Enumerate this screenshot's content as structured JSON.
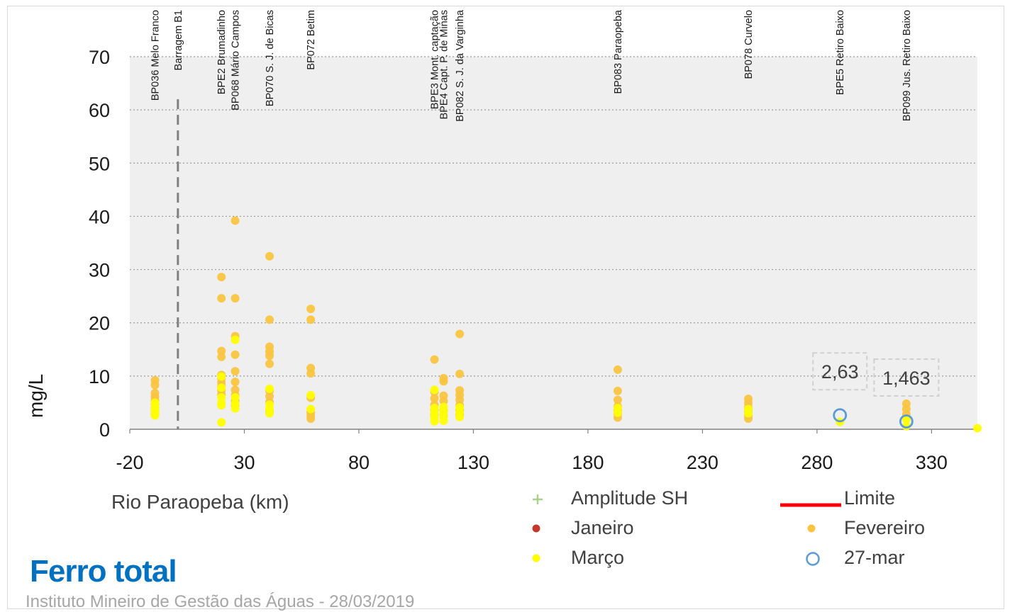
{
  "title": "Ferro total",
  "subtitle": "Instituto Mineiro de Gestão das Águas - 28/03/2019",
  "colors": {
    "janeiro": "#c0392b",
    "fevereiro": "#f9c440",
    "marco": "#ffff00",
    "marco27": "#5b9bd5",
    "limite": "#ff0000",
    "amplitude": "#a9d18e",
    "plot_bg": "#efefef",
    "dam_line": "#808080"
  },
  "legend": [
    {
      "key": "amplitude",
      "label": "Amplitude SH",
      "symbol": "plus-icon"
    },
    {
      "key": "limite",
      "label": "Limite",
      "symbol": "line-icon"
    },
    {
      "key": "janeiro",
      "label": "Janeiro",
      "symbol": "dot-icon"
    },
    {
      "key": "fevereiro",
      "label": "Fevereiro",
      "symbol": "dot-icon"
    },
    {
      "key": "marco",
      "label": "Março",
      "symbol": "dot-icon"
    },
    {
      "key": "marco27",
      "label": "27-mar",
      "symbol": "ring-icon"
    }
  ],
  "chart_data": {
    "type": "scatter",
    "xlabel": "Rio Paraopeba (km)",
    "ylabel": "mg/L",
    "xlim": [
      -20,
      350
    ],
    "ylim": [
      0,
      70
    ],
    "xticks": [
      "-20",
      "30",
      "80",
      "130",
      "180",
      "230",
      "280",
      "330"
    ],
    "yticks": [
      "0",
      "10",
      "20",
      "30",
      "40",
      "50",
      "60",
      "70"
    ],
    "grid": "horizontal-dotted",
    "stations": [
      {
        "label": "BP036 Melo Franco",
        "x": -9
      },
      {
        "label": "Barragem B1",
        "x": 1
      },
      {
        "label": "BPE2 Brumadinho",
        "x": 20
      },
      {
        "label": "BP068 Mário Campos",
        "x": 26
      },
      {
        "label": "BP070 S. J. de Bicas",
        "x": 41
      },
      {
        "label": "BP072 Betim",
        "x": 59
      },
      {
        "label": "BPE3 Mont. captação",
        "x": 113
      },
      {
        "label": "BPE4 Capt. P. de Minas",
        "x": 117
      },
      {
        "label": "BP082 S. J. da Varginha",
        "x": 124
      },
      {
        "label": "BP083 Paraopeba",
        "x": 193
      },
      {
        "label": "BP078 Curvelo",
        "x": 250
      },
      {
        "label": "BPE5 Retiro Baixo",
        "x": 290
      },
      {
        "label": "BP099 Jus. Retiro Baixo",
        "x": 319
      }
    ],
    "dam_x": 1,
    "series": [
      {
        "name": "Fevereiro",
        "key": "fevereiro",
        "points": [
          [
            -9,
            9.2
          ],
          [
            -9,
            8.3
          ],
          [
            -9,
            6.8
          ],
          [
            -9,
            6.1
          ],
          [
            -9,
            5.4
          ],
          [
            -9,
            4.7
          ],
          [
            -9,
            4.1
          ],
          [
            -9,
            3.5
          ],
          [
            -9,
            2.9
          ],
          [
            20,
            28.6
          ],
          [
            20,
            24.6
          ],
          [
            20,
            14.7
          ],
          [
            20,
            13.6
          ],
          [
            20,
            10.2
          ],
          [
            20,
            9.6
          ],
          [
            20,
            8.8
          ],
          [
            20,
            8.1
          ],
          [
            20,
            7.3
          ],
          [
            20,
            6.5
          ],
          [
            26,
            39.2
          ],
          [
            26,
            24.6
          ],
          [
            26,
            17.5
          ],
          [
            26,
            14.0
          ],
          [
            26,
            10.9
          ],
          [
            26,
            8.9
          ],
          [
            26,
            7.4
          ],
          [
            26,
            6.4
          ],
          [
            26,
            5.3
          ],
          [
            26,
            4.5
          ],
          [
            41,
            32.5
          ],
          [
            41,
            20.6
          ],
          [
            41,
            15.5
          ],
          [
            41,
            14.6
          ],
          [
            41,
            13.8
          ],
          [
            41,
            12.3
          ],
          [
            41,
            7.2
          ],
          [
            41,
            6.2
          ],
          [
            41,
            5.1
          ],
          [
            41,
            3.3
          ],
          [
            59,
            22.6
          ],
          [
            59,
            20.6
          ],
          [
            59,
            11.5
          ],
          [
            59,
            10.5
          ],
          [
            59,
            5.9
          ],
          [
            59,
            3.2
          ],
          [
            59,
            2.6
          ],
          [
            59,
            2.0
          ],
          [
            113,
            13.1
          ],
          [
            113,
            7.0
          ],
          [
            113,
            5.8
          ],
          [
            113,
            4.6
          ],
          [
            113,
            3.7
          ],
          [
            113,
            2.8
          ],
          [
            117,
            9.6
          ],
          [
            117,
            9.0
          ],
          [
            117,
            6.3
          ],
          [
            117,
            5.3
          ],
          [
            117,
            3.5
          ],
          [
            117,
            2.5
          ],
          [
            124,
            17.9
          ],
          [
            124,
            10.4
          ],
          [
            124,
            7.3
          ],
          [
            124,
            6.4
          ],
          [
            124,
            5.5
          ],
          [
            124,
            4.5
          ],
          [
            124,
            3.6
          ],
          [
            124,
            2.7
          ],
          [
            193,
            11.2
          ],
          [
            193,
            7.2
          ],
          [
            193,
            5.5
          ],
          [
            193,
            4.3
          ],
          [
            193,
            3.6
          ],
          [
            193,
            2.9
          ],
          [
            193,
            2.2
          ],
          [
            250,
            5.7
          ],
          [
            250,
            4.9
          ],
          [
            250,
            4.1
          ],
          [
            250,
            3.3
          ],
          [
            250,
            2.6
          ],
          [
            250,
            2.0
          ],
          [
            319,
            4.8
          ],
          [
            319,
            3.8
          ],
          [
            319,
            2.8
          ]
        ]
      },
      {
        "name": "Março",
        "key": "marco",
        "points": [
          [
            -9,
            5.0
          ],
          [
            -9,
            4.3
          ],
          [
            -9,
            3.7
          ],
          [
            -9,
            3.2
          ],
          [
            -9,
            2.6
          ],
          [
            20,
            9.9
          ],
          [
            20,
            7.8
          ],
          [
            20,
            6.0
          ],
          [
            20,
            5.0
          ],
          [
            20,
            4.5
          ],
          [
            20,
            1.3
          ],
          [
            26,
            16.8
          ],
          [
            26,
            6.0
          ],
          [
            26,
            4.8
          ],
          [
            26,
            3.9
          ],
          [
            41,
            7.6
          ],
          [
            41,
            4.6
          ],
          [
            41,
            3.8
          ],
          [
            41,
            3.0
          ],
          [
            59,
            6.4
          ],
          [
            59,
            3.8
          ],
          [
            113,
            7.4
          ],
          [
            113,
            4.0
          ],
          [
            113,
            3.1
          ],
          [
            113,
            2.2
          ],
          [
            113,
            1.5
          ],
          [
            117,
            4.2
          ],
          [
            117,
            3.3
          ],
          [
            117,
            2.4
          ],
          [
            117,
            1.6
          ],
          [
            124,
            4.1
          ],
          [
            124,
            3.2
          ],
          [
            124,
            2.3
          ],
          [
            193,
            4.0
          ],
          [
            193,
            3.1
          ],
          [
            250,
            3.8
          ],
          [
            250,
            3.0
          ],
          [
            290,
            1.4
          ],
          [
            319,
            1.9
          ],
          [
            319,
            0.6
          ],
          [
            350,
            0.2
          ]
        ]
      },
      {
        "name": "27-mar",
        "key": "marco27",
        "points": [
          [
            290,
            2.63
          ],
          [
            319,
            1.463
          ]
        ]
      }
    ],
    "data_labels": [
      {
        "x": 290,
        "y": 2.63,
        "text": "2,63"
      },
      {
        "x": 319,
        "y": 1.463,
        "text": "1,463"
      }
    ]
  }
}
